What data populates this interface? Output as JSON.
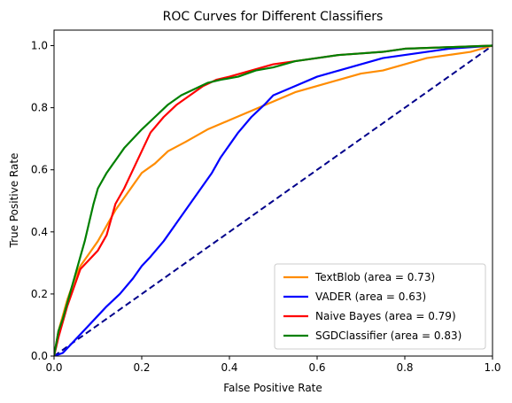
{
  "chart_data": {
    "type": "line",
    "title": "ROC Curves for Different Classifiers",
    "xlabel": "False Positive Rate",
    "ylabel": "True Positive Rate",
    "xlim": [
      0.0,
      1.0
    ],
    "ylim": [
      0.0,
      1.05
    ],
    "xticks": [
      "0.0",
      "0.2",
      "0.4",
      "0.6",
      "0.8",
      "1.0"
    ],
    "yticks": [
      "0.0",
      "0.2",
      "0.4",
      "0.6",
      "0.8",
      "1.0"
    ],
    "grid": false,
    "legend_position": "lower-right",
    "series": [
      {
        "name": "TextBlob (area = 0.73)",
        "color": "#ff8c00",
        "points": [
          [
            0,
            0
          ],
          [
            0.01,
            0.08
          ],
          [
            0.02,
            0.13
          ],
          [
            0.03,
            0.18
          ],
          [
            0.04,
            0.22
          ],
          [
            0.05,
            0.26
          ],
          [
            0.06,
            0.29
          ],
          [
            0.08,
            0.33
          ],
          [
            0.1,
            0.37
          ],
          [
            0.12,
            0.42
          ],
          [
            0.14,
            0.47
          ],
          [
            0.16,
            0.51
          ],
          [
            0.18,
            0.55
          ],
          [
            0.2,
            0.59
          ],
          [
            0.23,
            0.62
          ],
          [
            0.26,
            0.66
          ],
          [
            0.3,
            0.69
          ],
          [
            0.35,
            0.73
          ],
          [
            0.4,
            0.76
          ],
          [
            0.45,
            0.79
          ],
          [
            0.5,
            0.82
          ],
          [
            0.55,
            0.85
          ],
          [
            0.6,
            0.87
          ],
          [
            0.65,
            0.89
          ],
          [
            0.7,
            0.91
          ],
          [
            0.75,
            0.92
          ],
          [
            0.8,
            0.94
          ],
          [
            0.85,
            0.96
          ],
          [
            0.9,
            0.97
          ],
          [
            0.95,
            0.98
          ],
          [
            1.0,
            1.0
          ]
        ]
      },
      {
        "name": "VADER (area = 0.63)",
        "color": "#0000ff",
        "points": [
          [
            0,
            0
          ],
          [
            0.02,
            0.01
          ],
          [
            0.04,
            0.04
          ],
          [
            0.06,
            0.07
          ],
          [
            0.08,
            0.1
          ],
          [
            0.1,
            0.13
          ],
          [
            0.12,
            0.16
          ],
          [
            0.15,
            0.2
          ],
          [
            0.18,
            0.25
          ],
          [
            0.2,
            0.29
          ],
          [
            0.22,
            0.32
          ],
          [
            0.25,
            0.37
          ],
          [
            0.28,
            0.43
          ],
          [
            0.3,
            0.47
          ],
          [
            0.33,
            0.53
          ],
          [
            0.36,
            0.59
          ],
          [
            0.38,
            0.64
          ],
          [
            0.4,
            0.68
          ],
          [
            0.42,
            0.72
          ],
          [
            0.45,
            0.77
          ],
          [
            0.48,
            0.81
          ],
          [
            0.5,
            0.84
          ],
          [
            0.55,
            0.87
          ],
          [
            0.6,
            0.9
          ],
          [
            0.65,
            0.92
          ],
          [
            0.7,
            0.94
          ],
          [
            0.75,
            0.96
          ],
          [
            0.8,
            0.97
          ],
          [
            0.85,
            0.98
          ],
          [
            0.9,
            0.99
          ],
          [
            0.95,
            0.995
          ],
          [
            1.0,
            1.0
          ]
        ]
      },
      {
        "name": "Naive Bayes (area = 0.79)",
        "color": "#ff0000",
        "points": [
          [
            0,
            0
          ],
          [
            0.01,
            0.06
          ],
          [
            0.02,
            0.11
          ],
          [
            0.03,
            0.16
          ],
          [
            0.04,
            0.2
          ],
          [
            0.05,
            0.24
          ],
          [
            0.06,
            0.28
          ],
          [
            0.08,
            0.31
          ],
          [
            0.1,
            0.34
          ],
          [
            0.12,
            0.39
          ],
          [
            0.13,
            0.44
          ],
          [
            0.14,
            0.49
          ],
          [
            0.16,
            0.54
          ],
          [
            0.18,
            0.6
          ],
          [
            0.2,
            0.66
          ],
          [
            0.22,
            0.72
          ],
          [
            0.25,
            0.77
          ],
          [
            0.28,
            0.81
          ],
          [
            0.31,
            0.84
          ],
          [
            0.34,
            0.87
          ],
          [
            0.37,
            0.89
          ],
          [
            0.4,
            0.9
          ],
          [
            0.45,
            0.92
          ],
          [
            0.5,
            0.94
          ],
          [
            0.55,
            0.95
          ],
          [
            0.6,
            0.96
          ],
          [
            0.65,
            0.97
          ],
          [
            0.7,
            0.975
          ],
          [
            0.75,
            0.98
          ],
          [
            0.8,
            0.99
          ],
          [
            0.9,
            0.995
          ],
          [
            1.0,
            1.0
          ]
        ]
      },
      {
        "name": "SGDClassifier (area = 0.83)",
        "color": "#008000",
        "points": [
          [
            0,
            0
          ],
          [
            0.01,
            0.08
          ],
          [
            0.02,
            0.12
          ],
          [
            0.03,
            0.17
          ],
          [
            0.04,
            0.22
          ],
          [
            0.05,
            0.27
          ],
          [
            0.06,
            0.32
          ],
          [
            0.07,
            0.37
          ],
          [
            0.08,
            0.43
          ],
          [
            0.09,
            0.49
          ],
          [
            0.1,
            0.54
          ],
          [
            0.12,
            0.59
          ],
          [
            0.14,
            0.63
          ],
          [
            0.16,
            0.67
          ],
          [
            0.18,
            0.7
          ],
          [
            0.2,
            0.73
          ],
          [
            0.23,
            0.77
          ],
          [
            0.26,
            0.81
          ],
          [
            0.29,
            0.84
          ],
          [
            0.32,
            0.86
          ],
          [
            0.35,
            0.88
          ],
          [
            0.38,
            0.89
          ],
          [
            0.42,
            0.9
          ],
          [
            0.46,
            0.92
          ],
          [
            0.5,
            0.93
          ],
          [
            0.55,
            0.95
          ],
          [
            0.6,
            0.96
          ],
          [
            0.65,
            0.97
          ],
          [
            0.7,
            0.975
          ],
          [
            0.75,
            0.98
          ],
          [
            0.8,
            0.99
          ],
          [
            0.9,
            0.995
          ],
          [
            1.0,
            1.0
          ]
        ]
      }
    ],
    "reference_line": {
      "color": "#00008b",
      "points": [
        [
          0,
          0
        ],
        [
          1,
          1
        ]
      ]
    }
  }
}
